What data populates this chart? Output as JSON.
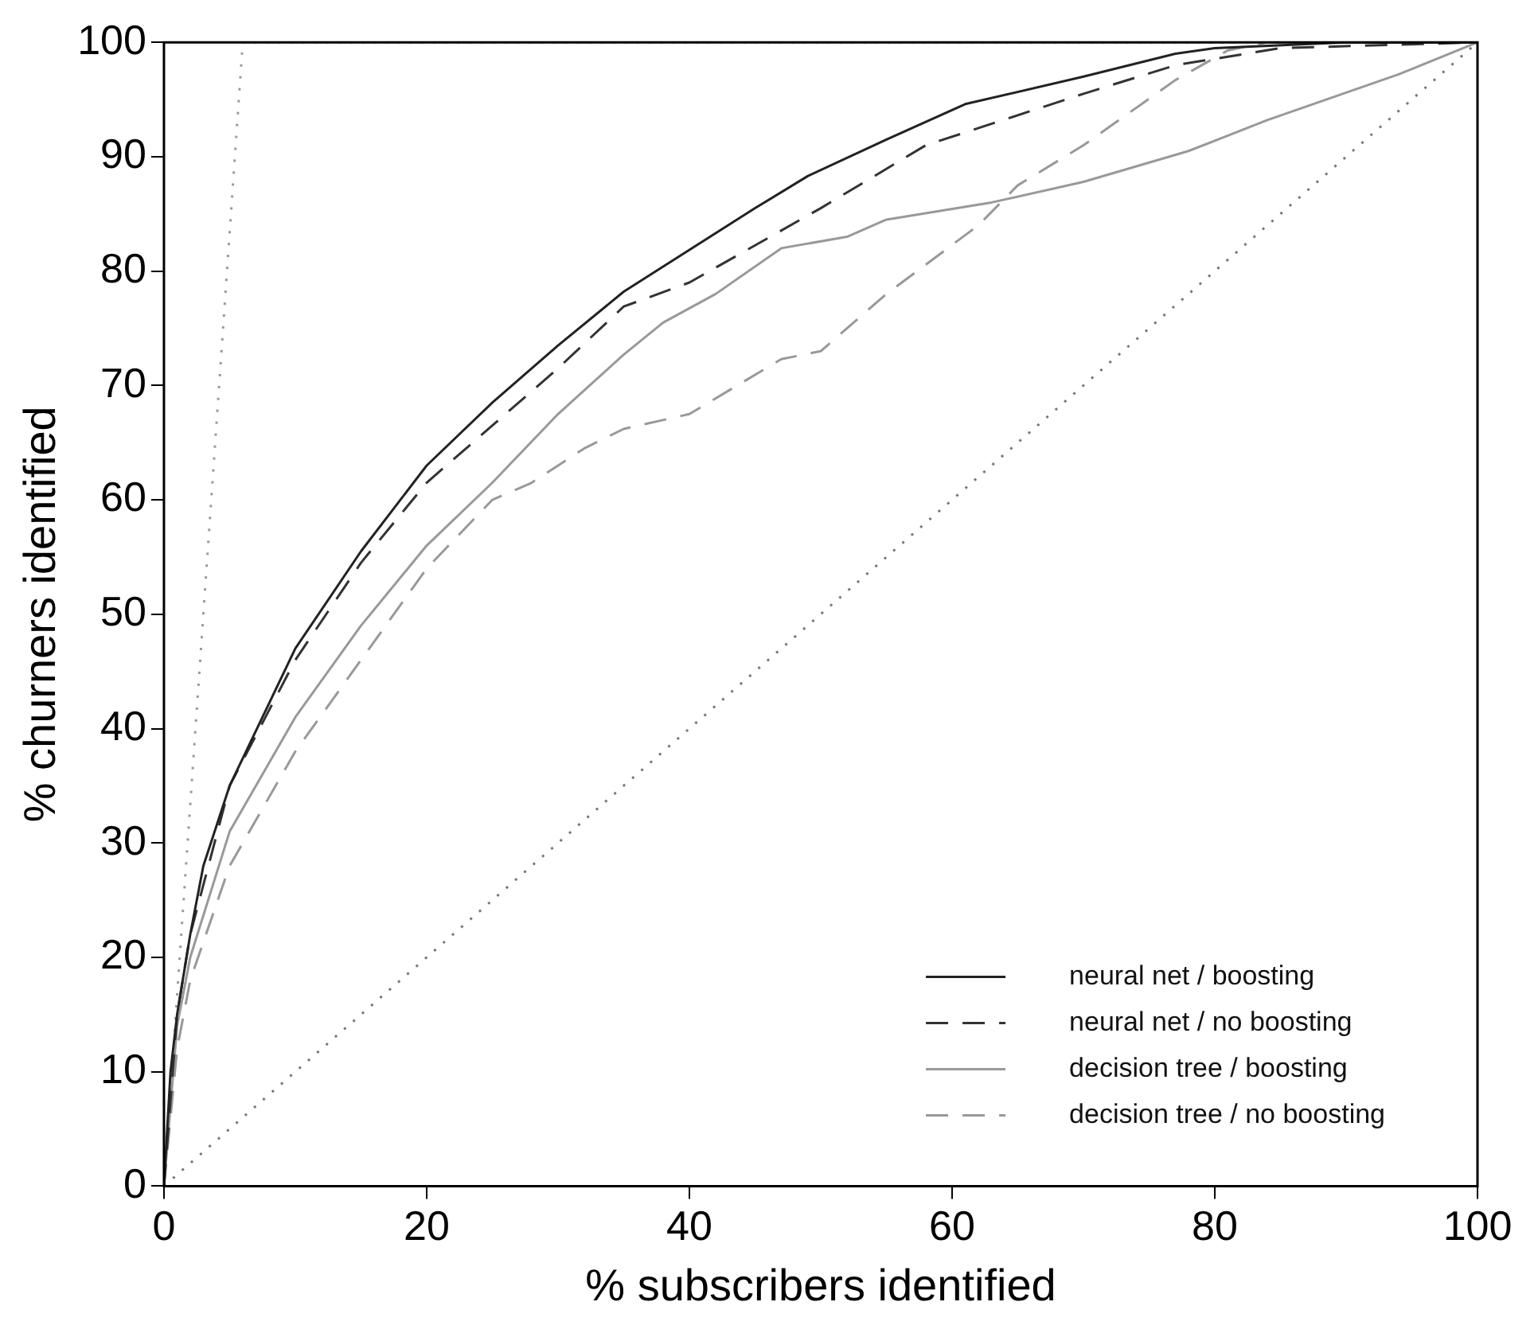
{
  "chart_data": {
    "type": "line",
    "xlabel": "% subscribers identified",
    "ylabel": "% churners identified",
    "xlim": [
      0,
      100
    ],
    "ylim": [
      0,
      100
    ],
    "xticks": [
      0,
      20,
      40,
      60,
      80,
      100
    ],
    "yticks": [
      0,
      10,
      20,
      30,
      40,
      50,
      60,
      70,
      80,
      90,
      100
    ],
    "grid": false,
    "legend": "bottom right",
    "marker": "none",
    "series": [
      {
        "name": "neural net / boosting",
        "color": "#222222",
        "line_style": "solid",
        "x": [
          0,
          0.5,
          1,
          2,
          3,
          5,
          7.5,
          10,
          15,
          20,
          25,
          30,
          35,
          45,
          49,
          55,
          61,
          70,
          77,
          80,
          90,
          100
        ],
        "values": [
          0,
          10,
          15,
          22,
          28,
          35,
          41,
          47,
          55.5,
          63,
          68.5,
          73.5,
          78.2,
          85.5,
          88.3,
          91.5,
          94.6,
          97,
          99,
          99.5,
          100,
          100
        ]
      },
      {
        "name": "neural net / no boosting",
        "color": "#333333",
        "line_style": "dashed",
        "x": [
          0,
          1,
          2,
          5,
          10,
          15,
          20,
          25,
          30,
          35,
          40,
          50,
          58,
          70,
          77,
          85,
          100
        ],
        "values": [
          0,
          15,
          22,
          35,
          46,
          54.5,
          61.5,
          66.5,
          71.5,
          76.9,
          79,
          85.5,
          91,
          95.5,
          98,
          99.5,
          100
        ]
      },
      {
        "name": "decision tree / boosting",
        "color": "#999999",
        "line_style": "solid",
        "x": [
          0,
          1,
          2,
          5,
          10,
          15,
          20,
          25,
          30,
          35,
          38,
          42,
          47,
          52,
          55,
          63,
          70,
          78,
          84,
          94,
          100
        ],
        "values": [
          0,
          14,
          20,
          31,
          41,
          49,
          56,
          61.5,
          67.5,
          72.7,
          75.5,
          78,
          82,
          83,
          84.5,
          86,
          87.8,
          90.5,
          93.2,
          97.2,
          100
        ]
      },
      {
        "name": "decision tree / no boosting",
        "color": "#999999",
        "line_style": "dashed",
        "x": [
          0,
          1,
          2,
          5,
          10,
          15,
          20,
          25,
          28,
          32,
          35,
          40,
          47,
          50,
          55,
          62,
          65,
          70,
          77,
          81,
          84,
          100
        ],
        "values": [
          0,
          12,
          18,
          28,
          38,
          46,
          54,
          60,
          61.5,
          64.5,
          66.2,
          67.5,
          72.3,
          73,
          78,
          84,
          87.5,
          91,
          96.7,
          99.3,
          100,
          100
        ]
      },
      {
        "color": "#999999",
        "line_style": "dotted",
        "x": [
          0,
          6,
          100
        ],
        "values": [
          0,
          100,
          100
        ]
      },
      {
        "color": "#777777",
        "line_style": "dotted",
        "x": [
          0,
          100
        ],
        "values": [
          0,
          100
        ]
      }
    ]
  }
}
